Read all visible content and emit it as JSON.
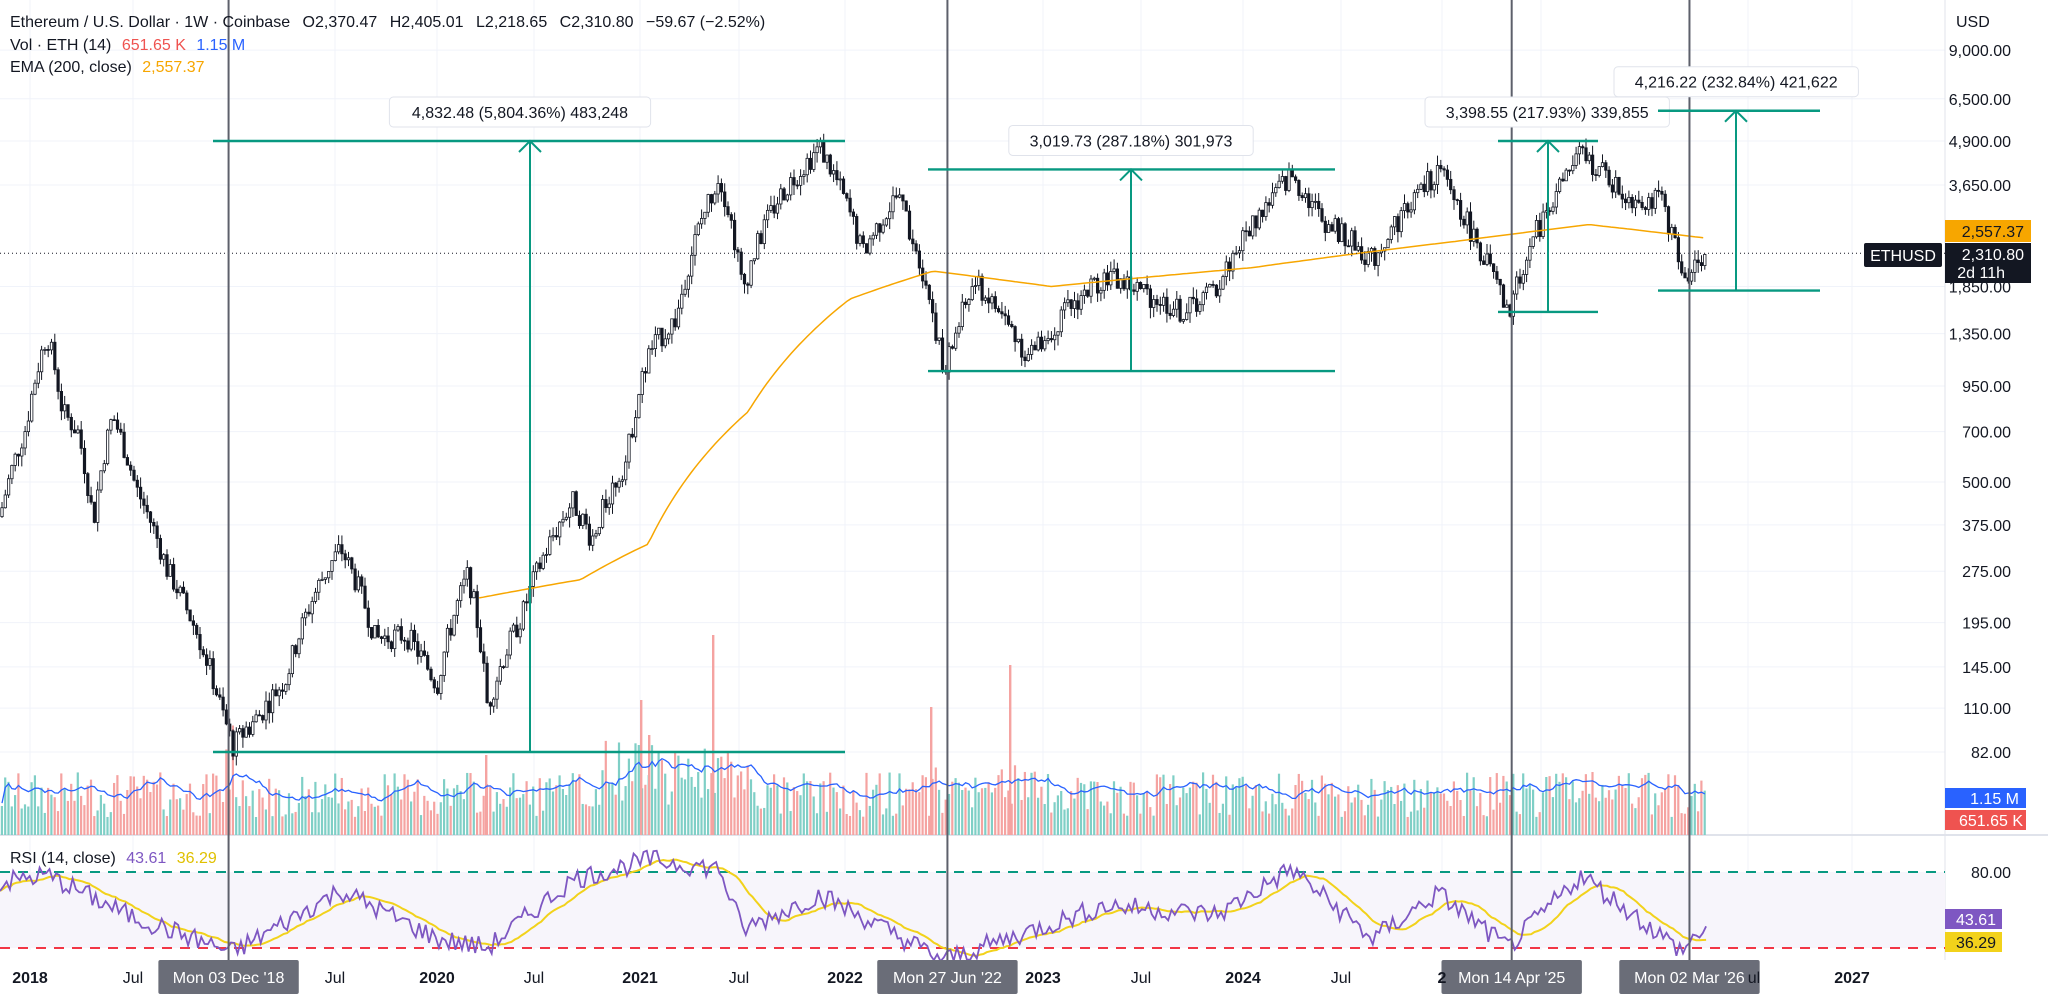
{
  "header": {
    "symbol_title": "Ethereum / U.S. Dollar · 1W · Coinbase",
    "ohlc": {
      "open": "O2,370.47",
      "high": "H2,405.01",
      "low": "L2,218.65",
      "close": "C2,310.80",
      "change": "−59.67 (−2.52%)"
    }
  },
  "volume_legend": {
    "label": "Vol · ETH (14)",
    "value": "651.65 K",
    "ma_value": "1.15 M"
  },
  "ema_legend": {
    "label": "EMA (200, close)",
    "value": "2,557.37"
  },
  "rsi_legend": {
    "label": "RSI (14, close)",
    "value": "43.61",
    "ma_value": "36.29"
  },
  "currency_label": "USD",
  "price_axis": [
    "9,000.00",
    "6,500.00",
    "4,900.00",
    "3,650.00",
    "2,557.37",
    "2,310.80",
    "1,850.00",
    "1,350.00",
    "950.00",
    "700.00",
    "500.00",
    "375.00",
    "275.00",
    "195.00",
    "145.00",
    "110.00",
    "82.00"
  ],
  "symbol_tag": "ETHUSD",
  "countdown": "2d 11h",
  "volume_axis": {
    "ma": "1.15 M",
    "vol": "651.65 K"
  },
  "rsi_axis": {
    "level": "80.00",
    "rsi": "43.61",
    "ma": "36.29"
  },
  "time_axis": [
    {
      "label": "2018",
      "bold": true
    },
    {
      "label": "Jul",
      "bold": false
    },
    {
      "label": "Jul",
      "bold": false
    },
    {
      "label": "2020",
      "bold": true
    },
    {
      "label": "Jul",
      "bold": false
    },
    {
      "label": "2021",
      "bold": true
    },
    {
      "label": "Jul",
      "bold": false
    },
    {
      "label": "2022",
      "bold": true
    },
    {
      "label": "2023",
      "bold": true
    },
    {
      "label": "Jul",
      "bold": false
    },
    {
      "label": "2024",
      "bold": true
    },
    {
      "label": "Jul",
      "bold": false
    },
    {
      "label": "2",
      "bold": true
    },
    {
      "label": "ul",
      "bold": false
    },
    {
      "label": "2027",
      "bold": true
    }
  ],
  "vline_dates": [
    "Mon 03 Dec '18",
    "Mon 27 Jun '22",
    "Mon 14 Apr '25",
    "Mon 02 Mar '26"
  ],
  "measurements": [
    {
      "text": "4,832.48 (5,804.36%) 483,248",
      "from": 82,
      "to": 4900
    },
    {
      "text": "3,019.73 (287.18%) 301,973",
      "from": 1050,
      "to": 4050
    },
    {
      "text": "3,398.55 (217.93%) 339,855",
      "from": 1560,
      "to": 4900
    },
    {
      "text": "4,216.22 (232.84%) 421,622",
      "from": 1800,
      "to": 6000
    }
  ],
  "colors": {
    "up": "#26a69a",
    "down": "#ef5350",
    "ema": "#f7a600",
    "rsi": "#7e57c2",
    "rsi_ma": "#f2d21b",
    "measure": "#089981",
    "volume_ma": "#2962ff",
    "volume_bar_up": "#7fcfc6",
    "volume_bar_down": "#f5a3a1"
  },
  "chart_data": {
    "type": "candlestick",
    "title": "Ethereum / U.S. Dollar · 1W · Coinbase",
    "xlabel": "",
    "ylabel": "USD",
    "scale": "log",
    "ylim": [
      60,
      10000
    ],
    "grid": true,
    "price_path": [
      {
        "date": "2017-10-01",
        "price": 300
      },
      {
        "date": "2017-12-01",
        "price": 720
      },
      {
        "date": "2018-01-08",
        "price": 1350
      },
      {
        "date": "2018-02-05",
        "price": 800
      },
      {
        "date": "2018-03-05",
        "price": 700
      },
      {
        "date": "2018-04-02",
        "price": 380
      },
      {
        "date": "2018-05-07",
        "price": 780
      },
      {
        "date": "2018-06-18",
        "price": 480
      },
      {
        "date": "2018-08-13",
        "price": 280
      },
      {
        "date": "2018-09-17",
        "price": 215
      },
      {
        "date": "2018-11-19",
        "price": 110
      },
      {
        "date": "2018-12-10",
        "price": 85
      },
      {
        "date": "2019-01-28",
        "price": 105
      },
      {
        "date": "2019-03-18",
        "price": 135
      },
      {
        "date": "2019-05-20",
        "price": 260
      },
      {
        "date": "2019-06-24",
        "price": 320
      },
      {
        "date": "2019-08-26",
        "price": 175
      },
      {
        "date": "2019-10-21",
        "price": 180
      },
      {
        "date": "2019-12-16",
        "price": 128
      },
      {
        "date": "2020-02-10",
        "price": 270
      },
      {
        "date": "2020-03-16",
        "price": 110
      },
      {
        "date": "2020-05-18",
        "price": 205
      },
      {
        "date": "2020-08-17",
        "price": 440
      },
      {
        "date": "2020-09-21",
        "price": 340
      },
      {
        "date": "2020-11-23",
        "price": 580
      },
      {
        "date": "2021-01-04",
        "price": 1200
      },
      {
        "date": "2021-02-22",
        "price": 1500
      },
      {
        "date": "2021-05-10",
        "price": 3900
      },
      {
        "date": "2021-06-21",
        "price": 1800
      },
      {
        "date": "2021-08-23",
        "price": 3300
      },
      {
        "date": "2021-11-08",
        "price": 4700
      },
      {
        "date": "2022-01-24",
        "price": 2300
      },
      {
        "date": "2022-03-28",
        "price": 3400
      },
      {
        "date": "2022-06-20",
        "price": 1000
      },
      {
        "date": "2022-08-15",
        "price": 1900
      },
      {
        "date": "2022-11-21",
        "price": 1150
      },
      {
        "date": "2023-04-10",
        "price": 2000
      },
      {
        "date": "2023-08-28",
        "price": 1550
      },
      {
        "date": "2023-10-30",
        "price": 1850
      },
      {
        "date": "2024-03-11",
        "price": 3900
      },
      {
        "date": "2024-05-06",
        "price": 2900
      },
      {
        "date": "2024-08-05",
        "price": 2200
      },
      {
        "date": "2024-12-02",
        "price": 4000
      },
      {
        "date": "2025-02-03",
        "price": 2600
      },
      {
        "date": "2025-04-07",
        "price": 1500
      },
      {
        "date": "2025-05-26",
        "price": 2600
      },
      {
        "date": "2025-08-18",
        "price": 4500
      },
      {
        "date": "2025-11-03",
        "price": 3400
      },
      {
        "date": "2026-01-12",
        "price": 3250
      },
      {
        "date": "2026-02-16",
        "price": 1950
      },
      {
        "date": "2026-03-30",
        "price": 2310
      }
    ],
    "ema200": [
      {
        "date": "2020-03-01",
        "price": 230
      },
      {
        "date": "2020-09-01",
        "price": 260
      },
      {
        "date": "2021-01-01",
        "price": 330
      },
      {
        "date": "2021-07-01",
        "price": 800
      },
      {
        "date": "2022-01-01",
        "price": 1700
      },
      {
        "date": "2022-06-01",
        "price": 2050
      },
      {
        "date": "2023-01-01",
        "price": 1850
      },
      {
        "date": "2024-01-01",
        "price": 2100
      },
      {
        "date": "2025-01-01",
        "price": 2500
      },
      {
        "date": "2025-09-01",
        "price": 2800
      },
      {
        "date": "2026-04-01",
        "price": 2557
      }
    ],
    "volume_ma": "1.15 M",
    "rsi_path": [
      {
        "date": "2017-10-01",
        "rsi": 72
      },
      {
        "date": "2018-01-08",
        "rsi": 78
      },
      {
        "date": "2018-06-01",
        "rsi": 52
      },
      {
        "date": "2018-12-10",
        "rsi": 27
      },
      {
        "date": "2019-06-24",
        "rsi": 68
      },
      {
        "date": "2019-12-16",
        "rsi": 36
      },
      {
        "date": "2020-03-16",
        "rsi": 30
      },
      {
        "date": "2020-08-17",
        "rsi": 75
      },
      {
        "date": "2021-01-04",
        "rsi": 88
      },
      {
        "date": "2021-05-10",
        "rsi": 82
      },
      {
        "date": "2021-06-21",
        "rsi": 42
      },
      {
        "date": "2021-11-08",
        "rsi": 65
      },
      {
        "date": "2022-06-20",
        "rsi": 22
      },
      {
        "date": "2023-04-10",
        "rsi": 58
      },
      {
        "date": "2023-10-30",
        "rsi": 52
      },
      {
        "date": "2024-03-11",
        "rsi": 82
      },
      {
        "date": "2024-08-05",
        "rsi": 36
      },
      {
        "date": "2024-12-02",
        "rsi": 66
      },
      {
        "date": "2025-04-07",
        "rsi": 30
      },
      {
        "date": "2025-08-18",
        "rsi": 78
      },
      {
        "date": "2026-02-16",
        "rsi": 28
      },
      {
        "date": "2026-03-30",
        "rsi": 43.61
      }
    ],
    "rsi_levels": [
      80,
      30
    ],
    "vertical_lines": [
      "2018-12-03",
      "2022-06-27",
      "2025-04-14",
      "2026-03-02"
    ]
  }
}
